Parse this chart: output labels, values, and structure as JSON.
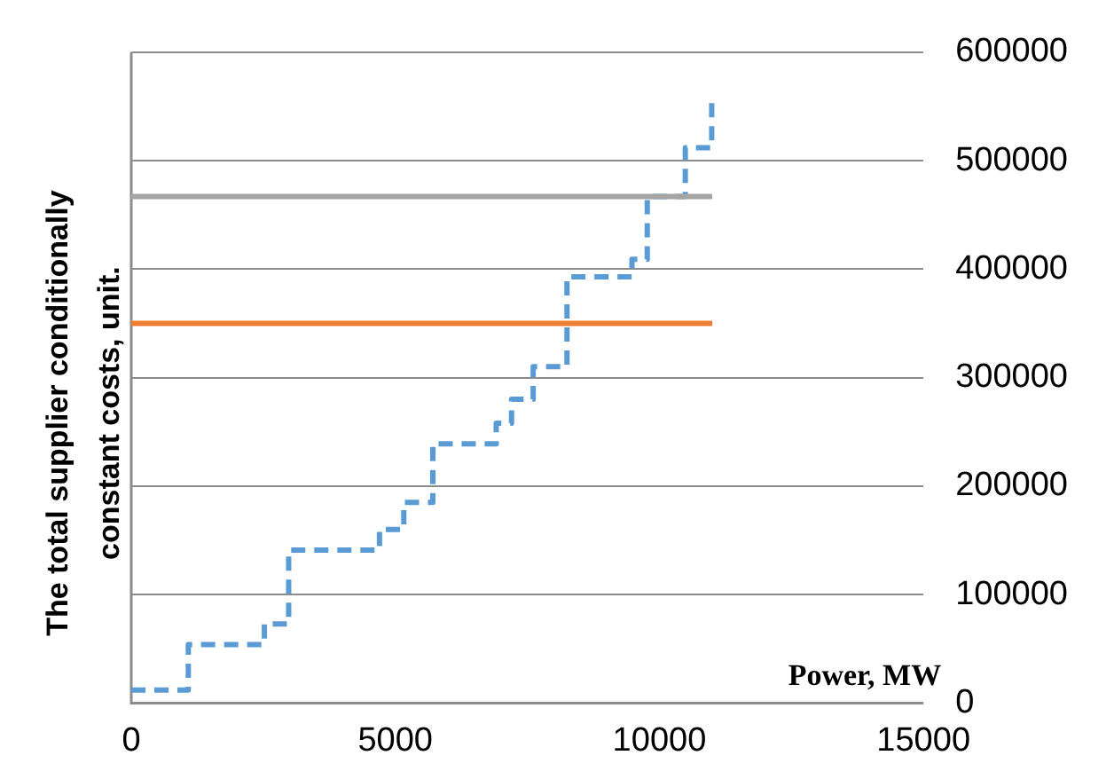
{
  "chart_data": {
    "type": "step",
    "xlabel": "Power, MW",
    "ylabel": "The total supplier conditionally constant costs, unit.",
    "xlim": [
      0,
      15000
    ],
    "xticks": [
      0,
      5000,
      10000,
      15000
    ],
    "ylim": [
      0,
      600000
    ],
    "yticks": [
      0,
      100000,
      200000,
      300000,
      400000,
      500000,
      600000
    ],
    "grid": "y",
    "legend": false,
    "marker": "none",
    "series": [
      {
        "type": "step",
        "color": "#5b9bd5",
        "line_style": "dashed",
        "x": [
          0,
          1080,
          2520,
          2980,
          4700,
          5160,
          5710,
          6910,
          7200,
          7610,
          8250,
          9480,
          9770,
          10490,
          10990
        ],
        "values": [
          12000,
          54000,
          73000,
          141000,
          160000,
          185000,
          239000,
          258000,
          280000,
          310000,
          393000,
          409000,
          467000,
          512000,
          553000
        ]
      },
      {
        "type": "line",
        "color": "#ed7d31",
        "line_style": "solid",
        "x": [
          0,
          11000
        ],
        "values": [
          350000,
          350000
        ]
      },
      {
        "type": "line",
        "color": "#a5a5a5",
        "line_style": "solid",
        "x": [
          0,
          11000
        ],
        "values": [
          467000,
          467000
        ]
      }
    ]
  }
}
